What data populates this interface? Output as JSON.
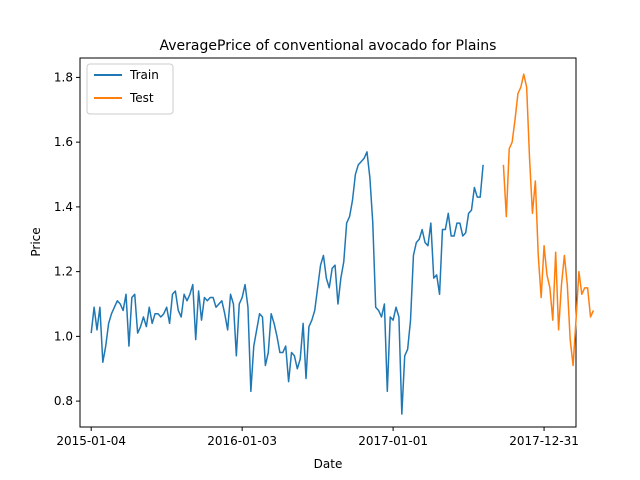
{
  "chart_data": {
    "type": "line",
    "title": "AveragePrice of conventional avocado for Plains",
    "xlabel": "Date",
    "ylabel": "Price",
    "x_ticks": [
      "2015-01-04",
      "2016-01-03",
      "2017-01-01",
      "2017-12-31"
    ],
    "x_range": [
      "2014-12-08",
      "2018-03-18"
    ],
    "y_ticks": [
      "0.8",
      "1.0",
      "1.2",
      "1.4",
      "1.6",
      "1.8"
    ],
    "ylim": [
      0.72,
      1.86
    ],
    "grid": false,
    "legend": {
      "position": "top-left",
      "entries": [
        "Train",
        "Test"
      ]
    },
    "series": [
      {
        "name": "Train",
        "color": "#1f77b4",
        "start_date": "2015-01-04",
        "interval_days": 7,
        "values": [
          1.01,
          1.09,
          1.02,
          1.09,
          0.92,
          0.97,
          1.04,
          1.07,
          1.09,
          1.11,
          1.1,
          1.08,
          1.13,
          0.97,
          1.12,
          1.13,
          1.01,
          1.03,
          1.06,
          1.03,
          1.09,
          1.04,
          1.07,
          1.07,
          1.06,
          1.07,
          1.09,
          1.04,
          1.13,
          1.14,
          1.08,
          1.06,
          1.13,
          1.11,
          1.13,
          1.16,
          0.99,
          1.14,
          1.05,
          1.12,
          1.11,
          1.12,
          1.12,
          1.09,
          1.1,
          1.11,
          1.07,
          1.02,
          1.13,
          1.1,
          0.94,
          1.1,
          1.12,
          1.16,
          1.09,
          0.83,
          0.97,
          1.02,
          1.07,
          1.06,
          0.91,
          0.95,
          1.07,
          1.04,
          1.0,
          0.95,
          0.95,
          0.97,
          0.86,
          0.95,
          0.94,
          0.9,
          0.93,
          1.04,
          0.87,
          1.03,
          1.05,
          1.08,
          1.15,
          1.22,
          1.25,
          1.18,
          1.15,
          1.21,
          1.22,
          1.1,
          1.18,
          1.23,
          1.35,
          1.37,
          1.42,
          1.5,
          1.53,
          1.54,
          1.55,
          1.57,
          1.49,
          1.35,
          1.09,
          1.08,
          1.06,
          1.1,
          0.83,
          1.06,
          1.05,
          1.09,
          1.06,
          0.76,
          0.94,
          0.96,
          1.05,
          1.25,
          1.29,
          1.3,
          1.33,
          1.29,
          1.28,
          1.35,
          1.18,
          1.19,
          1.13,
          1.33,
          1.33,
          1.38,
          1.31,
          1.31,
          1.35,
          1.35,
          1.31,
          1.32,
          1.38,
          1.39,
          1.46,
          1.43,
          1.43,
          1.53
        ]
      },
      {
        "name": "Test",
        "color": "#ff7f0e",
        "start_date": "2017-09-24",
        "interval_days": 7,
        "values": [
          1.53,
          1.37,
          1.58,
          1.6,
          1.67,
          1.75,
          1.77,
          1.81,
          1.77,
          1.55,
          1.38,
          1.48,
          1.25,
          1.12,
          1.28,
          1.19,
          1.15,
          1.05,
          1.26,
          1.02,
          1.16,
          1.25,
          1.16,
          0.99,
          0.91,
          1.05,
          1.2,
          1.13,
          1.15,
          1.15,
          1.06,
          1.08
        ]
      }
    ]
  }
}
